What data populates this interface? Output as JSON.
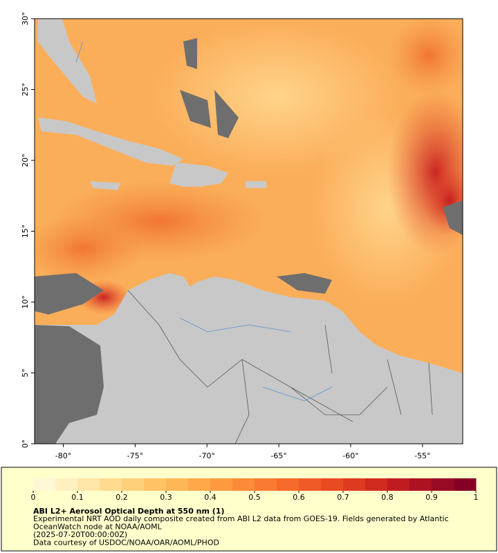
{
  "map": {
    "xlim": [
      -82,
      -52.2
    ],
    "ylim": [
      0,
      30
    ],
    "xticks": [
      {
        "value": -80,
        "label": "-80°"
      },
      {
        "value": -75,
        "label": "-75°"
      },
      {
        "value": -70,
        "label": "-70°"
      },
      {
        "value": -65,
        "label": "-65°"
      },
      {
        "value": -60,
        "label": "-60°"
      },
      {
        "value": -55,
        "label": "-55°"
      }
    ],
    "yticks": [
      {
        "value": 0,
        "label": "0°"
      },
      {
        "value": 5,
        "label": "5°"
      },
      {
        "value": 10,
        "label": "10°"
      },
      {
        "value": 15,
        "label": "15°"
      },
      {
        "value": 20,
        "label": "20°"
      },
      {
        "value": 25,
        "label": "25°"
      },
      {
        "value": 30,
        "label": "30°"
      }
    ]
  },
  "colorbar": {
    "lim": [
      0,
      1
    ],
    "ticks": [
      0,
      0.1,
      0.2,
      0.3,
      0.4,
      0.5,
      0.6,
      0.7,
      0.8,
      0.9,
      1
    ],
    "colors": [
      "#fff7d6",
      "#fff0c0",
      "#ffe6a8",
      "#ffdb90",
      "#ffd07a",
      "#fec466",
      "#feb756",
      "#fea84a",
      "#fd9a40",
      "#fc8a38",
      "#fa7a32",
      "#f66a2c",
      "#f05a26",
      "#e84a22",
      "#de3a1f",
      "#d02a1e",
      "#c01c20",
      "#ac1222",
      "#980a24",
      "#840025"
    ]
  },
  "caption": {
    "title": "ABI L2+ Aerosol Optical Depth at 550 nm (1)",
    "lines": [
      "Experimental NRT AOD daily composite created from ABI L2 data from GOES-19. Fields generated by Atlantic",
      "OceanWatch node at NOAA/AOML",
      "(2025-07-20T00:00:00Z)",
      "Data courtesy of USDOC/NOAA/OAR/AOML/PHOD"
    ]
  }
}
